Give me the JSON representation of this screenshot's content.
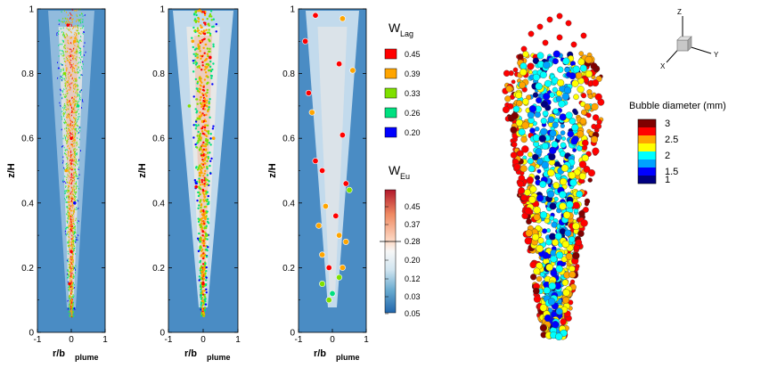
{
  "chart_data": [
    {
      "type": "scatter",
      "panel": "eulerian-lagrangian-1",
      "xlabel_main": "r/b",
      "xlabel_sub": "plume",
      "ylabel": "z/H",
      "xlim": [
        -1,
        1
      ],
      "ylim": [
        0,
        1
      ],
      "xticks": [
        "-1",
        "0",
        "1"
      ],
      "yticks": [
        "0",
        "0.2",
        "0.4",
        "0.6",
        "0.8",
        "1"
      ],
      "points": [
        {
          "x": -0.1,
          "z": 0.95,
          "w": 0.45
        },
        {
          "x": 0.1,
          "z": 0.9,
          "w": 0.39
        },
        {
          "x": -0.2,
          "z": 0.8,
          "w": 0.33
        },
        {
          "x": 0.2,
          "z": 0.7,
          "w": 0.26
        },
        {
          "x": 0.0,
          "z": 0.6,
          "w": 0.45
        },
        {
          "x": -0.15,
          "z": 0.5,
          "w": 0.39
        },
        {
          "x": 0.1,
          "z": 0.4,
          "w": 0.2
        },
        {
          "x": 0.0,
          "z": 0.25,
          "w": 0.45
        },
        {
          "x": -0.05,
          "z": 0.15,
          "w": 0.45
        }
      ]
    },
    {
      "type": "scatter",
      "panel": "eulerian-lagrangian-2",
      "xlabel_main": "r/b",
      "xlabel_sub": "plume",
      "ylabel": "z/H",
      "xlim": [
        -1,
        1
      ],
      "ylim": [
        0,
        1
      ],
      "xticks": [
        "-1",
        "0",
        "1"
      ],
      "yticks": [
        "0",
        "0.2",
        "0.4",
        "0.6",
        "0.8",
        "1"
      ],
      "points": [
        {
          "x": -0.3,
          "z": 0.9,
          "w": 0.39
        },
        {
          "x": 0.2,
          "z": 0.85,
          "w": 0.45
        },
        {
          "x": -0.4,
          "z": 0.7,
          "w": 0.33
        },
        {
          "x": 0.3,
          "z": 0.6,
          "w": 0.39
        },
        {
          "x": -0.2,
          "z": 0.45,
          "w": 0.45
        },
        {
          "x": 0.1,
          "z": 0.3,
          "w": 0.33
        },
        {
          "x": 0.0,
          "z": 0.15,
          "w": 0.45
        }
      ]
    },
    {
      "type": "scatter",
      "panel": "eulerian-lagrangian-3",
      "xlabel_main": "r/b",
      "xlabel_sub": "plume",
      "ylabel": "z/H",
      "xlim": [
        -1,
        1
      ],
      "ylim": [
        0,
        1
      ],
      "xticks": [
        "-1",
        "0",
        "1"
      ],
      "yticks": [
        "0",
        "0.2",
        "0.4",
        "0.6",
        "0.8",
        "1"
      ],
      "points": [
        {
          "x": -0.5,
          "z": 0.98,
          "w": 0.45
        },
        {
          "x": 0.3,
          "z": 0.97,
          "w": 0.39
        },
        {
          "x": -0.8,
          "z": 0.9,
          "w": 0.45
        },
        {
          "x": 0.2,
          "z": 0.83,
          "w": 0.45
        },
        {
          "x": 0.6,
          "z": 0.81,
          "w": 0.39
        },
        {
          "x": -0.7,
          "z": 0.74,
          "w": 0.45
        },
        {
          "x": -0.6,
          "z": 0.68,
          "w": 0.39
        },
        {
          "x": 0.3,
          "z": 0.61,
          "w": 0.45
        },
        {
          "x": -0.5,
          "z": 0.53,
          "w": 0.45
        },
        {
          "x": -0.3,
          "z": 0.5,
          "w": 0.45
        },
        {
          "x": 0.4,
          "z": 0.46,
          "w": 0.45
        },
        {
          "x": 0.5,
          "z": 0.44,
          "w": 0.33
        },
        {
          "x": -0.2,
          "z": 0.39,
          "w": 0.39
        },
        {
          "x": 0.1,
          "z": 0.36,
          "w": 0.45
        },
        {
          "x": -0.4,
          "z": 0.33,
          "w": 0.39
        },
        {
          "x": 0.2,
          "z": 0.3,
          "w": 0.39
        },
        {
          "x": 0.4,
          "z": 0.28,
          "w": 0.39
        },
        {
          "x": -0.3,
          "z": 0.24,
          "w": 0.39
        },
        {
          "x": 0.3,
          "z": 0.2,
          "w": 0.39
        },
        {
          "x": -0.1,
          "z": 0.2,
          "w": 0.45
        },
        {
          "x": 0.2,
          "z": 0.17,
          "w": 0.33
        },
        {
          "x": -0.3,
          "z": 0.15,
          "w": 0.33
        },
        {
          "x": 0.0,
          "z": 0.12,
          "w": 0.26
        },
        {
          "x": -0.1,
          "z": 0.1,
          "w": 0.33
        }
      ]
    }
  ],
  "legend_lag": {
    "title": "W",
    "sub": "Lag",
    "items": [
      {
        "label": "0.45",
        "color": "#ff0000"
      },
      {
        "label": "0.39",
        "color": "#ffa500"
      },
      {
        "label": "0.33",
        "color": "#7fe000"
      },
      {
        "label": "0.26",
        "color": "#00e080"
      },
      {
        "label": "0.20",
        "color": "#0000ff"
      }
    ]
  },
  "legend_eu": {
    "title": "W",
    "sub": "Eu",
    "ticks": [
      "0.45",
      "0.37",
      "0.28",
      "0.20",
      "0.12",
      "0.03",
      "0.05"
    ],
    "colors_top_to_bottom": [
      "#b2182b",
      "#ef8a62",
      "#fddbc7",
      "#f7f7f7",
      "#d1e5f0",
      "#67a9cf",
      "#2166ac"
    ]
  },
  "legend_bubble": {
    "title": "Bubble diameter (mm)",
    "items": [
      {
        "label": "3",
        "color": "#800000"
      },
      {
        "label": "",
        "color": "#ff0000"
      },
      {
        "label": "2.5",
        "color": "#ffa500"
      },
      {
        "label": "",
        "color": "#ffff00"
      },
      {
        "label": "2",
        "color": "#00ffff"
      },
      {
        "label": "",
        "color": "#00a0ff"
      },
      {
        "label": "1.5",
        "color": "#0000ff"
      },
      {
        "label": "1",
        "color": "#000080"
      }
    ]
  },
  "axes_triad": {
    "x": "X",
    "y": "Y",
    "z": "Z"
  }
}
